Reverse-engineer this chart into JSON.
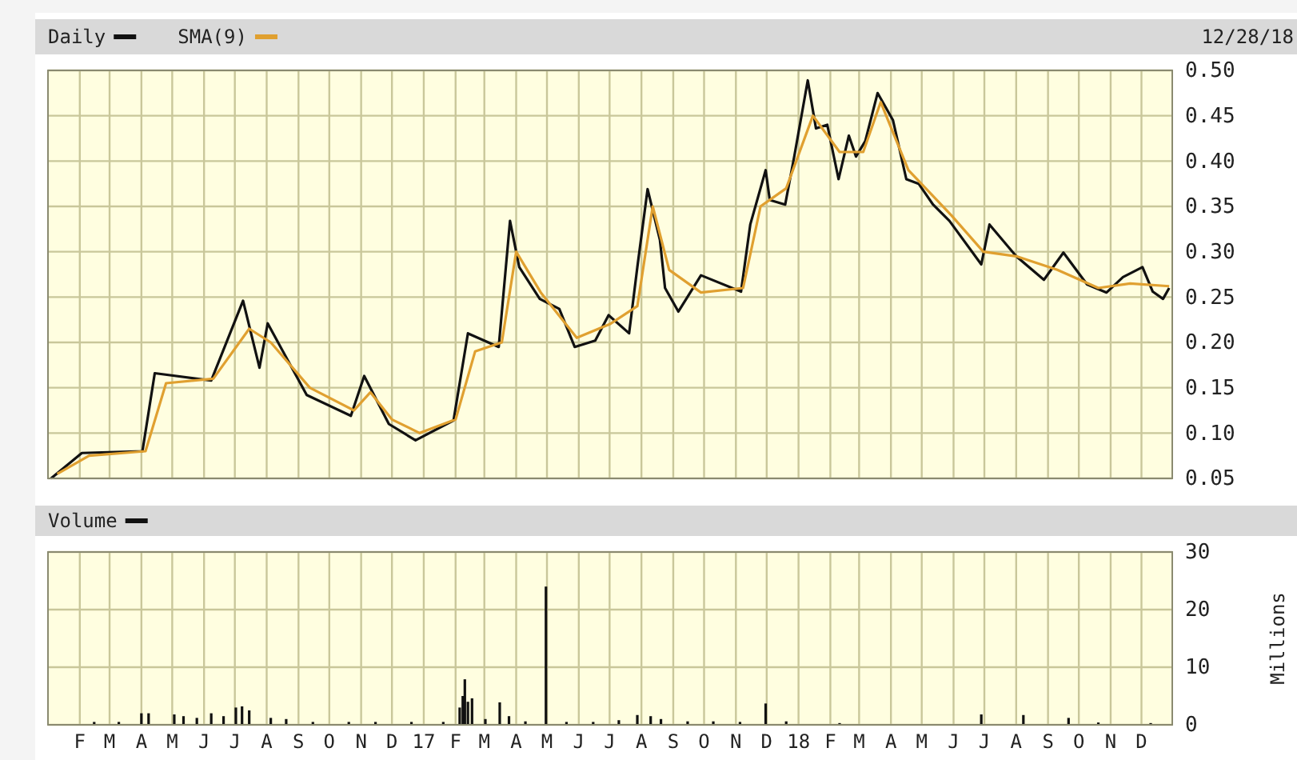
{
  "chart_data": [
    {
      "type": "line",
      "legend": "top left",
      "grid": true,
      "tick_labels": "y",
      "annotations": [
        "12/28/18"
      ],
      "xlim": [
        "2016-01-01",
        "2018-12-31"
      ],
      "xticks": [
        {
          "value": "2016-02-01",
          "label": null
        },
        {
          "value": "2016-03-01",
          "label": null
        },
        {
          "value": "2016-04-01",
          "label": null
        },
        {
          "value": "2016-05-01",
          "label": null
        },
        {
          "value": "2016-06-01",
          "label": null
        },
        {
          "value": "2016-07-01",
          "label": null
        },
        {
          "value": "2016-08-01",
          "label": null
        },
        {
          "value": "2016-09-01",
          "label": null
        },
        {
          "value": "2016-10-01",
          "label": null
        },
        {
          "value": "2016-11-01",
          "label": null
        },
        {
          "value": "2016-12-01",
          "label": null
        },
        {
          "value": "2017-01-01",
          "label": null
        },
        {
          "value": "2017-02-01",
          "label": null
        },
        {
          "value": "2017-03-01",
          "label": null
        },
        {
          "value": "2017-04-01",
          "label": null
        },
        {
          "value": "2017-05-01",
          "label": null
        },
        {
          "value": "2017-06-01",
          "label": null
        },
        {
          "value": "2017-07-01",
          "label": null
        },
        {
          "value": "2017-08-01",
          "label": null
        },
        {
          "value": "2017-09-01",
          "label": null
        },
        {
          "value": "2017-10-01",
          "label": null
        },
        {
          "value": "2017-11-01",
          "label": null
        },
        {
          "value": "2017-12-01",
          "label": null
        },
        {
          "value": "2018-01-01",
          "label": null
        },
        {
          "value": "2018-02-01",
          "label": null
        },
        {
          "value": "2018-03-01",
          "label": null
        },
        {
          "value": "2018-04-01",
          "label": null
        },
        {
          "value": "2018-05-01",
          "label": null
        },
        {
          "value": "2018-06-01",
          "label": null
        },
        {
          "value": "2018-07-01",
          "label": null
        },
        {
          "value": "2018-08-01",
          "label": null
        },
        {
          "value": "2018-09-01",
          "label": null
        },
        {
          "value": "2018-10-01",
          "label": null
        },
        {
          "value": "2018-11-01",
          "label": null
        },
        {
          "value": "2018-12-01",
          "label": null
        }
      ],
      "ylim": [
        0.05,
        0.5
      ],
      "yticks": [
        {
          "value": 0.05,
          "label": "0.05"
        },
        {
          "value": 0.1,
          "label": "0.10"
        },
        {
          "value": 0.15,
          "label": "0.15"
        },
        {
          "value": 0.2,
          "label": "0.20"
        },
        {
          "value": 0.25,
          "label": "0.25"
        },
        {
          "value": 0.3,
          "label": "0.30"
        },
        {
          "value": 0.35,
          "label": "0.35"
        },
        {
          "value": 0.4,
          "label": "0.40"
        },
        {
          "value": 0.45,
          "label": "0.45"
        },
        {
          "value": 0.5,
          "label": "0.50"
        }
      ],
      "series": [
        {
          "name": "Daily",
          "color": "#111111",
          "x": [
            "2016-01-04",
            "2016-02-03",
            "2016-04-02",
            "2016-04-14",
            "2016-06-08",
            "2016-07-09",
            "2016-07-25",
            "2016-08-02",
            "2016-09-09",
            "2016-10-22",
            "2016-11-04",
            "2016-11-28",
            "2016-12-24",
            "2017-01-30",
            "2017-02-13",
            "2017-03-15",
            "2017-03-26",
            "2017-04-04",
            "2017-04-24",
            "2017-05-13",
            "2017-05-28",
            "2017-06-17",
            "2017-06-30",
            "2017-07-20",
            "2017-07-28",
            "2017-08-07",
            "2017-08-19",
            "2017-08-24",
            "2017-09-06",
            "2017-09-28",
            "2017-11-06",
            "2017-11-15",
            "2017-11-30",
            "2017-12-04",
            "2017-12-19",
            "2017-12-28",
            "2018-01-10",
            "2018-01-18",
            "2018-01-29",
            "2018-02-09",
            "2018-02-19",
            "2018-02-26",
            "2018-03-07",
            "2018-03-19",
            "2018-04-03",
            "2018-04-16",
            "2018-04-28",
            "2018-05-12",
            "2018-05-28",
            "2018-06-28",
            "2018-07-06",
            "2018-08-01",
            "2018-08-28",
            "2018-09-16",
            "2018-10-09",
            "2018-10-28",
            "2018-11-13",
            "2018-12-02",
            "2018-12-12",
            "2018-12-22",
            "2018-12-28"
          ],
          "values": [
            0.05,
            0.078,
            0.08,
            0.166,
            0.158,
            0.246,
            0.172,
            0.221,
            0.142,
            0.119,
            0.163,
            0.11,
            0.092,
            0.114,
            0.21,
            0.195,
            0.334,
            0.283,
            0.248,
            0.237,
            0.195,
            0.202,
            0.23,
            0.21,
            0.283,
            0.369,
            0.313,
            0.26,
            0.234,
            0.274,
            0.256,
            0.33,
            0.39,
            0.357,
            0.352,
            0.406,
            0.489,
            0.436,
            0.44,
            0.38,
            0.428,
            0.405,
            0.422,
            0.475,
            0.445,
            0.38,
            0.375,
            0.352,
            0.334,
            0.286,
            0.33,
            0.295,
            0.269,
            0.299,
            0.264,
            0.255,
            0.272,
            0.283,
            0.256,
            0.248,
            0.26
          ]
        },
        {
          "name": "SMA(9)",
          "color": "#e0a030",
          "x": [
            "2016-01-10",
            "2016-02-10",
            "2016-04-05",
            "2016-04-25",
            "2016-06-10",
            "2016-07-15",
            "2016-08-05",
            "2016-09-12",
            "2016-10-25",
            "2016-11-10",
            "2016-12-01",
            "2016-12-28",
            "2017-02-01",
            "2017-02-20",
            "2017-03-18",
            "2017-04-01",
            "2017-04-25",
            "2017-05-30",
            "2017-07-01",
            "2017-07-28",
            "2017-08-12",
            "2017-08-28",
            "2017-09-28",
            "2017-11-08",
            "2017-11-25",
            "2017-12-20",
            "2018-01-15",
            "2018-02-10",
            "2018-03-05",
            "2018-03-22",
            "2018-04-18",
            "2018-05-30",
            "2018-06-30",
            "2018-08-01",
            "2018-09-10",
            "2018-10-20",
            "2018-11-20",
            "2018-12-28"
          ],
          "values": [
            0.055,
            0.075,
            0.08,
            0.155,
            0.16,
            0.215,
            0.2,
            0.15,
            0.125,
            0.145,
            0.115,
            0.1,
            0.115,
            0.19,
            0.2,
            0.3,
            0.255,
            0.205,
            0.22,
            0.24,
            0.35,
            0.28,
            0.255,
            0.26,
            0.35,
            0.37,
            0.45,
            0.41,
            0.41,
            0.465,
            0.39,
            0.34,
            0.3,
            0.295,
            0.28,
            0.26,
            0.265,
            0.262
          ]
        }
      ]
    },
    {
      "type": "bar",
      "grid": true,
      "ylabel": "Millions",
      "xlim": [
        "2016-01-01",
        "2018-12-31"
      ],
      "xticks": [
        {
          "value": "2016-02-01",
          "label": "F"
        },
        {
          "value": "2016-03-01",
          "label": "M"
        },
        {
          "value": "2016-04-01",
          "label": "A"
        },
        {
          "value": "2016-05-01",
          "label": "M"
        },
        {
          "value": "2016-06-01",
          "label": "J"
        },
        {
          "value": "2016-07-01",
          "label": "J"
        },
        {
          "value": "2016-08-01",
          "label": "A"
        },
        {
          "value": "2016-09-01",
          "label": "S"
        },
        {
          "value": "2016-10-01",
          "label": "O"
        },
        {
          "value": "2016-11-01",
          "label": "N"
        },
        {
          "value": "2016-12-01",
          "label": "D"
        },
        {
          "value": "2017-01-01",
          "label": "17"
        },
        {
          "value": "2017-02-01",
          "label": "F"
        },
        {
          "value": "2017-03-01",
          "label": "M"
        },
        {
          "value": "2017-04-01",
          "label": "A"
        },
        {
          "value": "2017-05-01",
          "label": "M"
        },
        {
          "value": "2017-06-01",
          "label": "J"
        },
        {
          "value": "2017-07-01",
          "label": "J"
        },
        {
          "value": "2017-08-01",
          "label": "A"
        },
        {
          "value": "2017-09-01",
          "label": "S"
        },
        {
          "value": "2017-10-01",
          "label": "O"
        },
        {
          "value": "2017-11-01",
          "label": "N"
        },
        {
          "value": "2017-12-01",
          "label": "D"
        },
        {
          "value": "2018-01-01",
          "label": "18"
        },
        {
          "value": "2018-02-01",
          "label": "F"
        },
        {
          "value": "2018-03-01",
          "label": "M"
        },
        {
          "value": "2018-04-01",
          "label": "A"
        },
        {
          "value": "2018-05-01",
          "label": "M"
        },
        {
          "value": "2018-06-01",
          "label": "J"
        },
        {
          "value": "2018-07-01",
          "label": "J"
        },
        {
          "value": "2018-08-01",
          "label": "A"
        },
        {
          "value": "2018-09-01",
          "label": "S"
        },
        {
          "value": "2018-10-01",
          "label": "O"
        },
        {
          "value": "2018-11-01",
          "label": "N"
        },
        {
          "value": "2018-12-01",
          "label": "D"
        }
      ],
      "ylim": [
        0,
        30
      ],
      "yticks": [
        0,
        10,
        20,
        30
      ],
      "legend": "top left",
      "series": [
        {
          "name": "Volume",
          "color": "#111111",
          "x": [
            "2016-02-15",
            "2016-03-10",
            "2016-04-01",
            "2016-04-08",
            "2016-05-03",
            "2016-05-12",
            "2016-05-25",
            "2016-06-08",
            "2016-06-20",
            "2016-07-02",
            "2016-07-08",
            "2016-07-15",
            "2016-08-05",
            "2016-08-20",
            "2016-09-15",
            "2016-10-20",
            "2016-11-15",
            "2016-12-20",
            "2017-01-20",
            "2017-02-05",
            "2017-02-08",
            "2017-02-10",
            "2017-02-13",
            "2017-02-17",
            "2017-03-02",
            "2017-03-16",
            "2017-03-25",
            "2017-04-10",
            "2017-04-30",
            "2017-05-20",
            "2017-06-15",
            "2017-07-10",
            "2017-07-28",
            "2017-08-10",
            "2017-08-20",
            "2017-09-15",
            "2017-10-10",
            "2017-11-05",
            "2017-11-30",
            "2017-12-20",
            "2018-02-10",
            "2018-04-10",
            "2018-06-28",
            "2018-08-08",
            "2018-09-21",
            "2018-10-20",
            "2018-12-10"
          ],
          "values": [
            0.5,
            0.5,
            2,
            2,
            1.8,
            1.5,
            1.2,
            2,
            1.5,
            3,
            3.2,
            2.5,
            1.2,
            1,
            0.5,
            0.5,
            0.5,
            0.5,
            0.5,
            3,
            5,
            7.9,
            4,
            4.6,
            1,
            3.9,
            1.5,
            0.6,
            24,
            0.5,
            0.5,
            0.8,
            1.7,
            1.5,
            1,
            0.6,
            0.6,
            0.5,
            3.7,
            0.6,
            0.3,
            null,
            1.8,
            1.7,
            1.2,
            0.4,
            0.3
          ]
        }
      ]
    }
  ]
}
